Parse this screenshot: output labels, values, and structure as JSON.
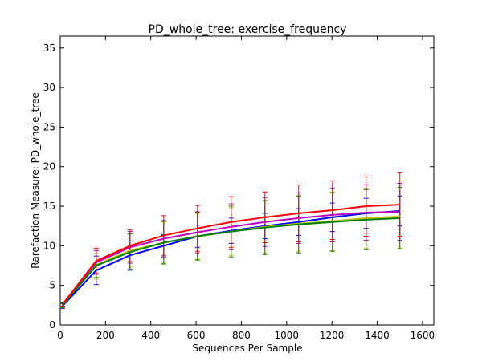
{
  "chart_data": {
    "type": "line",
    "title": "PD_whole_tree: exercise_frequency",
    "xlabel": "Sequences Per Sample",
    "ylabel": "Rarefaction Measure: PD_whole_tree",
    "xlim": [
      0,
      1650
    ],
    "ylim": [
      0,
      36.5
    ],
    "xticks": [
      0,
      200,
      400,
      600,
      800,
      1000,
      1200,
      1400,
      1600
    ],
    "yticks": [
      0,
      5,
      10,
      15,
      20,
      25,
      30,
      35
    ],
    "x": [
      10,
      159,
      308,
      457,
      606,
      755,
      904,
      1053,
      1202,
      1351,
      1500
    ],
    "series": [
      {
        "name": "blue",
        "color": "#0000ff",
        "values": [
          2.4,
          6.9,
          8.8,
          10.0,
          11.2,
          11.9,
          12.5,
          13.0,
          13.6,
          14.1,
          14.4
        ],
        "errors": [
          0.3,
          1.8,
          1.8,
          1.4,
          1.4,
          1.6,
          1.6,
          1.7,
          1.8,
          1.9,
          1.9
        ]
      },
      {
        "name": "yellow",
        "color": "#bfbf00",
        "values": [
          2.5,
          7.6,
          9.4,
          10.4,
          11.2,
          11.8,
          12.4,
          12.8,
          13.1,
          13.5,
          13.7
        ],
        "errors": [
          0.3,
          1.8,
          2.1,
          2.6,
          2.9,
          3.0,
          3.3,
          3.5,
          3.7,
          3.8,
          4.0
        ]
      },
      {
        "name": "purple",
        "color": "#bf00bf",
        "values": [
          2.6,
          7.9,
          9.8,
          10.9,
          11.7,
          12.4,
          13.0,
          13.5,
          13.9,
          14.2,
          14.3
        ],
        "errors": [
          0.3,
          1.5,
          2.0,
          2.3,
          2.6,
          2.9,
          3.1,
          3.2,
          3.4,
          3.5,
          3.6
        ]
      },
      {
        "name": "green",
        "color": "#008000",
        "values": [
          2.5,
          7.5,
          9.2,
          10.4,
          11.2,
          11.8,
          12.3,
          12.7,
          13.0,
          13.3,
          13.5
        ],
        "errors": [
          0.3,
          1.5,
          2.3,
          2.7,
          3.0,
          3.2,
          3.4,
          3.6,
          3.7,
          3.8,
          3.9
        ]
      },
      {
        "name": "red",
        "color": "#ff0000",
        "values": [
          2.6,
          8.1,
          10.0,
          11.3,
          12.2,
          13.0,
          13.6,
          14.1,
          14.5,
          15.0,
          15.2
        ],
        "errors": [
          0.3,
          1.6,
          2.0,
          2.5,
          2.9,
          3.2,
          3.2,
          3.6,
          3.7,
          3.8,
          4.0
        ]
      }
    ]
  }
}
